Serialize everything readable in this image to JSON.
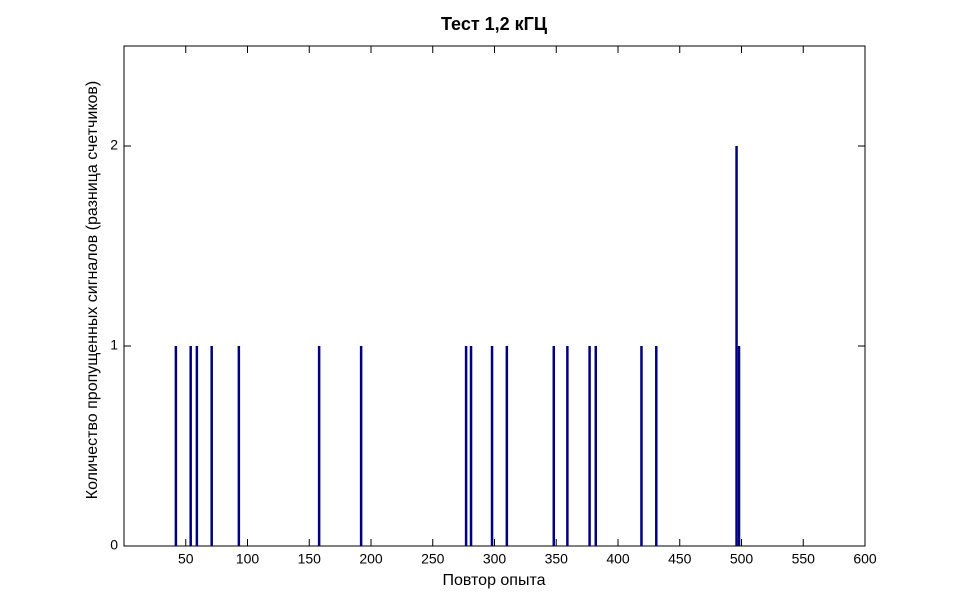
{
  "chart_data": {
    "type": "bar",
    "title": "Тест 1,2 кГЦ",
    "x_label": "Повтор опыта",
    "y_label": "Количество пропущенных сигналов (разница счетчиков)",
    "x": [
      42,
      54,
      59,
      71,
      93,
      158,
      192,
      277,
      281,
      298,
      310,
      348,
      359,
      377,
      382,
      419,
      431,
      496,
      498
    ],
    "values": [
      1,
      1,
      1,
      1,
      1,
      1,
      1,
      1,
      1,
      1,
      1,
      1,
      1,
      1,
      1,
      1,
      1,
      2,
      1
    ],
    "color": "#000080",
    "xlim": [
      0,
      600
    ],
    "xticks": [
      50,
      100,
      150,
      200,
      250,
      300,
      350,
      400,
      450,
      500,
      550,
      600
    ],
    "ylim": [
      0,
      2.5
    ],
    "yticks": [
      0,
      1,
      2
    ],
    "grid": false
  }
}
